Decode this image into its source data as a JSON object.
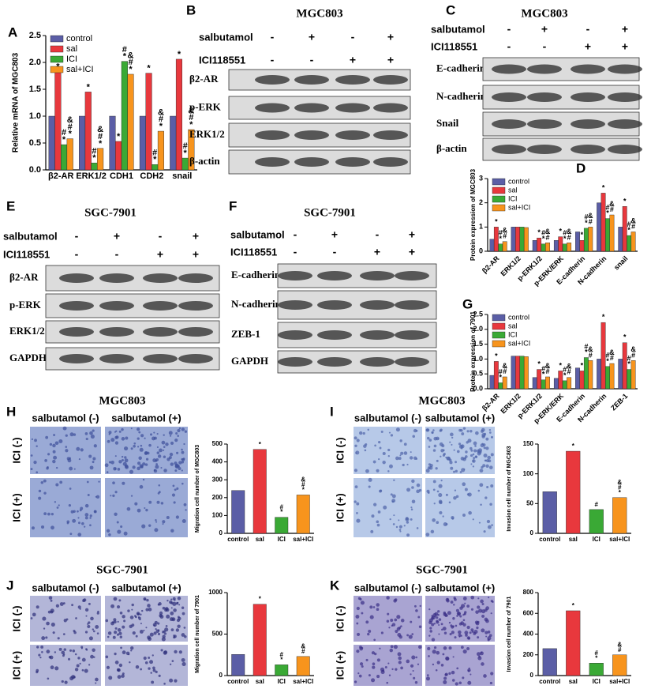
{
  "chart_data": [
    {
      "type": "bar",
      "panel": "A",
      "ylabel": "Relative mRNA of MGC803",
      "categories": [
        "β2-AR",
        "ERK1/2",
        "CDH1",
        "CDH2",
        "snail"
      ],
      "series": [
        {
          "name": "control",
          "color": "#5b5ea6",
          "values": [
            1,
            1,
            1,
            1,
            1
          ]
        },
        {
          "name": "sal",
          "color": "#e8383d",
          "values": [
            1.83,
            1.45,
            0.53,
            1.8,
            2.06
          ],
          "annotations": [
            "*",
            "*",
            "*",
            "*",
            "*"
          ]
        },
        {
          "name": "ICI",
          "color": "#3aa935",
          "values": [
            0.47,
            0.13,
            2.02,
            0.1,
            0.22
          ],
          "annotations": [
            "#*",
            "#*",
            "#*",
            "#*",
            "#*"
          ]
        },
        {
          "name": "sal+ICI",
          "color": "#f7941d",
          "values": [
            0.58,
            0.4,
            1.78,
            0.72,
            0.75
          ],
          "annotations": [
            "&#*",
            "&#*",
            "&#*",
            "&#*",
            "&#*"
          ]
        }
      ],
      "ylim": [
        0,
        2.5
      ],
      "yticks": [
        {
          "value": 0,
          "label": "0.0"
        },
        {
          "value": 0.5,
          "label": "0.5"
        },
        {
          "value": 1,
          "label": "1.0"
        },
        {
          "value": 1.5,
          "label": "1.5"
        },
        {
          "value": 2,
          "label": "2.0"
        },
        {
          "value": 2.5,
          "label": "2.5"
        }
      ],
      "legend": "upper left"
    },
    {
      "type": "bar",
      "panel": "D",
      "ylabel": "Protein expression of MGC803",
      "categories": [
        "β2-AR",
        "ERK1/2",
        "p-ERK1/2",
        "p-ERK/ERK",
        "E-cadherin",
        "N-cadherin",
        "snail"
      ],
      "series": [
        {
          "name": "control",
          "color": "#5b5ea6",
          "values": [
            0.5,
            1,
            0.45,
            0.45,
            0.8,
            2,
            1
          ]
        },
        {
          "name": "sal",
          "color": "#e8383d",
          "values": [
            1,
            1,
            0.55,
            0.6,
            0.45,
            2.4,
            1.85
          ],
          "annotations": [
            "*",
            null,
            "*",
            "*",
            "*",
            "*",
            "*"
          ]
        },
        {
          "name": "ICI",
          "color": "#3aa935",
          "values": [
            0.3,
            1,
            0.3,
            0.3,
            0.95,
            1.35,
            0.65
          ],
          "annotations": [
            "#*",
            null,
            "#*",
            "#*",
            "#*",
            "#*",
            "#*"
          ]
        },
        {
          "name": "sal+ICI",
          "color": "#f7941d",
          "values": [
            0.4,
            0.98,
            0.35,
            0.35,
            1,
            1.5,
            0.8
          ],
          "annotations": [
            "&#",
            null,
            "&#",
            "&#",
            "&#",
            "&#",
            "&#"
          ]
        }
      ],
      "ylim": [
        0,
        3
      ],
      "yticks": [
        0,
        1,
        2,
        3
      ],
      "legend": "upper left"
    },
    {
      "type": "bar",
      "panel": "G",
      "ylabel": "Protein expression of 7901",
      "categories": [
        "β2-AR",
        "ERK1/2",
        "p-ERK1/2",
        "p-ERK/ERK",
        "E-cadherin",
        "N-cadherin",
        "ZEB-1"
      ],
      "series": [
        {
          "name": "control",
          "color": "#5b5ea6",
          "values": [
            0.45,
            1.1,
            0.38,
            0.35,
            0.7,
            1,
            1
          ]
        },
        {
          "name": "sal",
          "color": "#e8383d",
          "values": [
            0.92,
            1.1,
            0.65,
            0.6,
            0.6,
            2.23,
            1.55
          ],
          "annotations": [
            "*",
            null,
            "*",
            "*",
            "*",
            "*",
            "*"
          ]
        },
        {
          "name": "ICI",
          "color": "#3aa935",
          "values": [
            0.2,
            1.1,
            0.3,
            0.27,
            1.05,
            0.75,
            0.65
          ],
          "annotations": [
            "#*",
            null,
            "#*",
            "#*",
            "#*",
            "#*",
            "#*"
          ]
        },
        {
          "name": "sal+ICI",
          "color": "#f7941d",
          "values": [
            0.4,
            1.08,
            0.4,
            0.38,
            0.95,
            0.85,
            0.95
          ],
          "annotations": [
            "&#",
            null,
            "&#",
            "&#",
            "&#",
            "&#",
            "&#"
          ]
        }
      ],
      "ylim": [
        0,
        2.5
      ],
      "yticks": [
        {
          "value": 0,
          "label": "0.0"
        },
        {
          "value": 0.5,
          "label": "0.5"
        },
        {
          "value": 1,
          "label": "1.0"
        },
        {
          "value": 1.5,
          "label": "1.5"
        },
        {
          "value": 2,
          "label": "2.0"
        },
        {
          "value": 2.5,
          "label": "2.5"
        }
      ],
      "legend": "upper left"
    },
    {
      "type": "bar",
      "ylabel": "Migration cell number of MGC803",
      "categories": [
        "control",
        "sal",
        "ICI",
        "sal+ICI"
      ],
      "series": [
        {
          "colors": [
            "#5b5ea6",
            "#e8383d",
            "#3aa935",
            "#f7941d"
          ],
          "values": [
            240,
            470,
            90,
            215
          ],
          "annotations": [
            null,
            "*",
            "#*",
            "&#*"
          ]
        }
      ],
      "ylim": [
        0,
        500
      ],
      "yticks": [
        0,
        100,
        200,
        300,
        400,
        500
      ]
    },
    {
      "type": "bar",
      "ylabel": "Invasion cell number of MGC803",
      "categories": [
        "control",
        "sal",
        "ICI",
        "sal+ICI"
      ],
      "series": [
        {
          "colors": [
            "#5b5ea6",
            "#e8383d",
            "#3aa935",
            "#f7941d"
          ],
          "values": [
            70,
            138,
            40,
            60
          ],
          "annotations": [
            null,
            "*",
            "#",
            "&#*"
          ]
        }
      ],
      "ylim": [
        0,
        150
      ],
      "yticks": [
        0,
        50,
        100,
        150
      ]
    },
    {
      "type": "bar",
      "ylabel": "Migration cell number of 7901",
      "categories": [
        "control",
        "sal",
        "ICI",
        "sal+ICI"
      ],
      "series": [
        {
          "colors": [
            "#5b5ea6",
            "#e8383d",
            "#3aa935",
            "#f7941d"
          ],
          "values": [
            255,
            860,
            130,
            230
          ],
          "annotations": [
            null,
            "*",
            "#*",
            "&#"
          ]
        }
      ],
      "ylim": [
        0,
        1000
      ],
      "yticks": [
        0,
        500,
        1000
      ]
    },
    {
      "type": "bar",
      "ylabel": "Invasion cell number of 7901",
      "categories": [
        "control",
        "sal",
        "ICI",
        "sal+ICI"
      ],
      "series": [
        {
          "colors": [
            "#5b5ea6",
            "#e8383d",
            "#3aa935",
            "#f7941d"
          ],
          "values": [
            260,
            625,
            120,
            200
          ],
          "annotations": [
            null,
            "*",
            "#*",
            "&#"
          ]
        }
      ],
      "ylim": [
        0,
        800
      ],
      "yticks": [
        0,
        200,
        400,
        600,
        800
      ]
    }
  ],
  "blots": [
    {
      "panel": "B",
      "title": "MGC803",
      "treatments": [
        {
          "label": "salbutamol",
          "signs": [
            "-",
            "+",
            "-",
            "+"
          ]
        },
        {
          "label": "ICI118551",
          "signs": [
            "-",
            "-",
            "+",
            "+"
          ]
        }
      ],
      "rows": [
        "β2-AR",
        "p-ERK",
        "ERK1/2",
        "β-actin"
      ]
    },
    {
      "panel": "C",
      "title": "MGC803",
      "treatments": [
        {
          "label": "salbutamol",
          "signs": [
            "-",
            "+",
            "-",
            "+"
          ]
        },
        {
          "label": "ICI118551",
          "signs": [
            "-",
            "-",
            "+",
            "+"
          ]
        }
      ],
      "rows": [
        "E-cadherin",
        "N-cadherin",
        "Snail",
        "β-actin"
      ]
    },
    {
      "panel": "E",
      "title": "SGC-7901",
      "treatments": [
        {
          "label": "salbutamol",
          "signs": [
            "-",
            "+",
            "-",
            "+"
          ]
        },
        {
          "label": "ICI118551",
          "signs": [
            "-",
            "-",
            "+",
            "+"
          ]
        }
      ],
      "rows": [
        "β2-AR",
        "p-ERK",
        "ERK1/2",
        "GAPDH"
      ]
    },
    {
      "panel": "F",
      "title": "SGC-7901",
      "treatments": [
        {
          "label": "salbutamol",
          "signs": [
            "-",
            "+",
            "-",
            "+"
          ]
        },
        {
          "label": "ICI118551",
          "signs": [
            "-",
            "-",
            "+",
            "+"
          ]
        }
      ],
      "rows": [
        "E-cadherin",
        "N-cadherin",
        "ZEB-1",
        "GAPDH"
      ]
    }
  ],
  "micrographs": [
    {
      "panel": "H",
      "title": "MGC803",
      "columns": [
        "salbutamol (-)",
        "salbutamol (+)"
      ],
      "rows": [
        "ICI (-)",
        "ICI (+)"
      ]
    },
    {
      "panel": "I",
      "title": "MGC803",
      "columns": [
        "salbutamol (-)",
        "salbutamol (+)"
      ],
      "rows": [
        "ICI (-)",
        "ICI (+)"
      ]
    },
    {
      "panel": "J",
      "title": "SGC-7901",
      "columns": [
        "salbutamol (-)",
        "salbutamol (+)"
      ],
      "rows": [
        "ICI (-)",
        "ICI (+)"
      ]
    },
    {
      "panel": "K",
      "title": "SGC-7901",
      "columns": [
        "salbutamol (-)",
        "salbutamol (+)"
      ],
      "rows": [
        "ICI (-)",
        "ICI (+)"
      ]
    }
  ]
}
